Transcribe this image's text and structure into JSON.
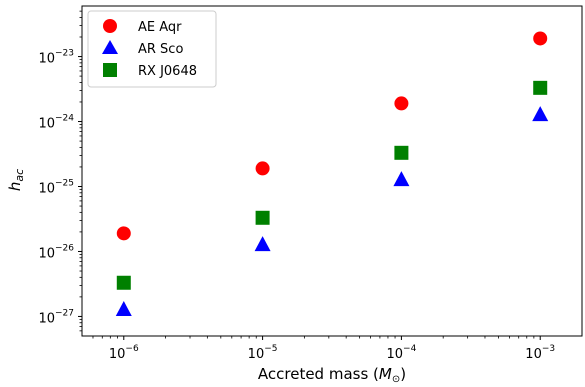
{
  "chart_data": {
    "type": "scatter",
    "x_scale": "log",
    "y_scale": "log",
    "xlim": [
      5e-07,
      0.002
    ],
    "ylim": [
      5e-28,
      6e-23
    ],
    "x": [
      1e-06,
      1e-05,
      0.0001,
      0.001
    ],
    "x_ticks": [
      {
        "mantissa": "10",
        "exp": "−6"
      },
      {
        "mantissa": "10",
        "exp": "−5"
      },
      {
        "mantissa": "10",
        "exp": "−4"
      },
      {
        "mantissa": "10",
        "exp": "−3"
      }
    ],
    "y_ticks": [
      {
        "value": 1e-27,
        "mantissa": "10",
        "exp": "−27"
      },
      {
        "value": 1e-26,
        "mantissa": "10",
        "exp": "−26"
      },
      {
        "value": 1e-25,
        "mantissa": "10",
        "exp": "−25"
      },
      {
        "value": 1e-24,
        "mantissa": "10",
        "exp": "−24"
      },
      {
        "value": 1e-23,
        "mantissa": "10",
        "exp": "−23"
      }
    ],
    "xlabel": {
      "main": "Accreted mass (",
      "sym": "M",
      "sub": "⊙",
      "tail": ")"
    },
    "ylabel": {
      "main": "h",
      "sub": "ac"
    },
    "legend_position": "top-left",
    "grid": false,
    "series": [
      {
        "name": "AE Aqr",
        "marker": "circle",
        "color": "#ff0000",
        "values": [
          1.9e-26,
          1.9e-25,
          1.9e-24,
          1.9e-23
        ]
      },
      {
        "name": "AR Sco",
        "marker": "triangle",
        "color": "#0000ff",
        "values": [
          1.3e-27,
          1.3e-26,
          1.3e-25,
          1.3e-24
        ]
      },
      {
        "name": "RX J0648",
        "marker": "square",
        "color": "#008000",
        "values": [
          3.3e-27,
          3.3e-26,
          3.3e-25,
          3.3e-24
        ]
      }
    ]
  }
}
